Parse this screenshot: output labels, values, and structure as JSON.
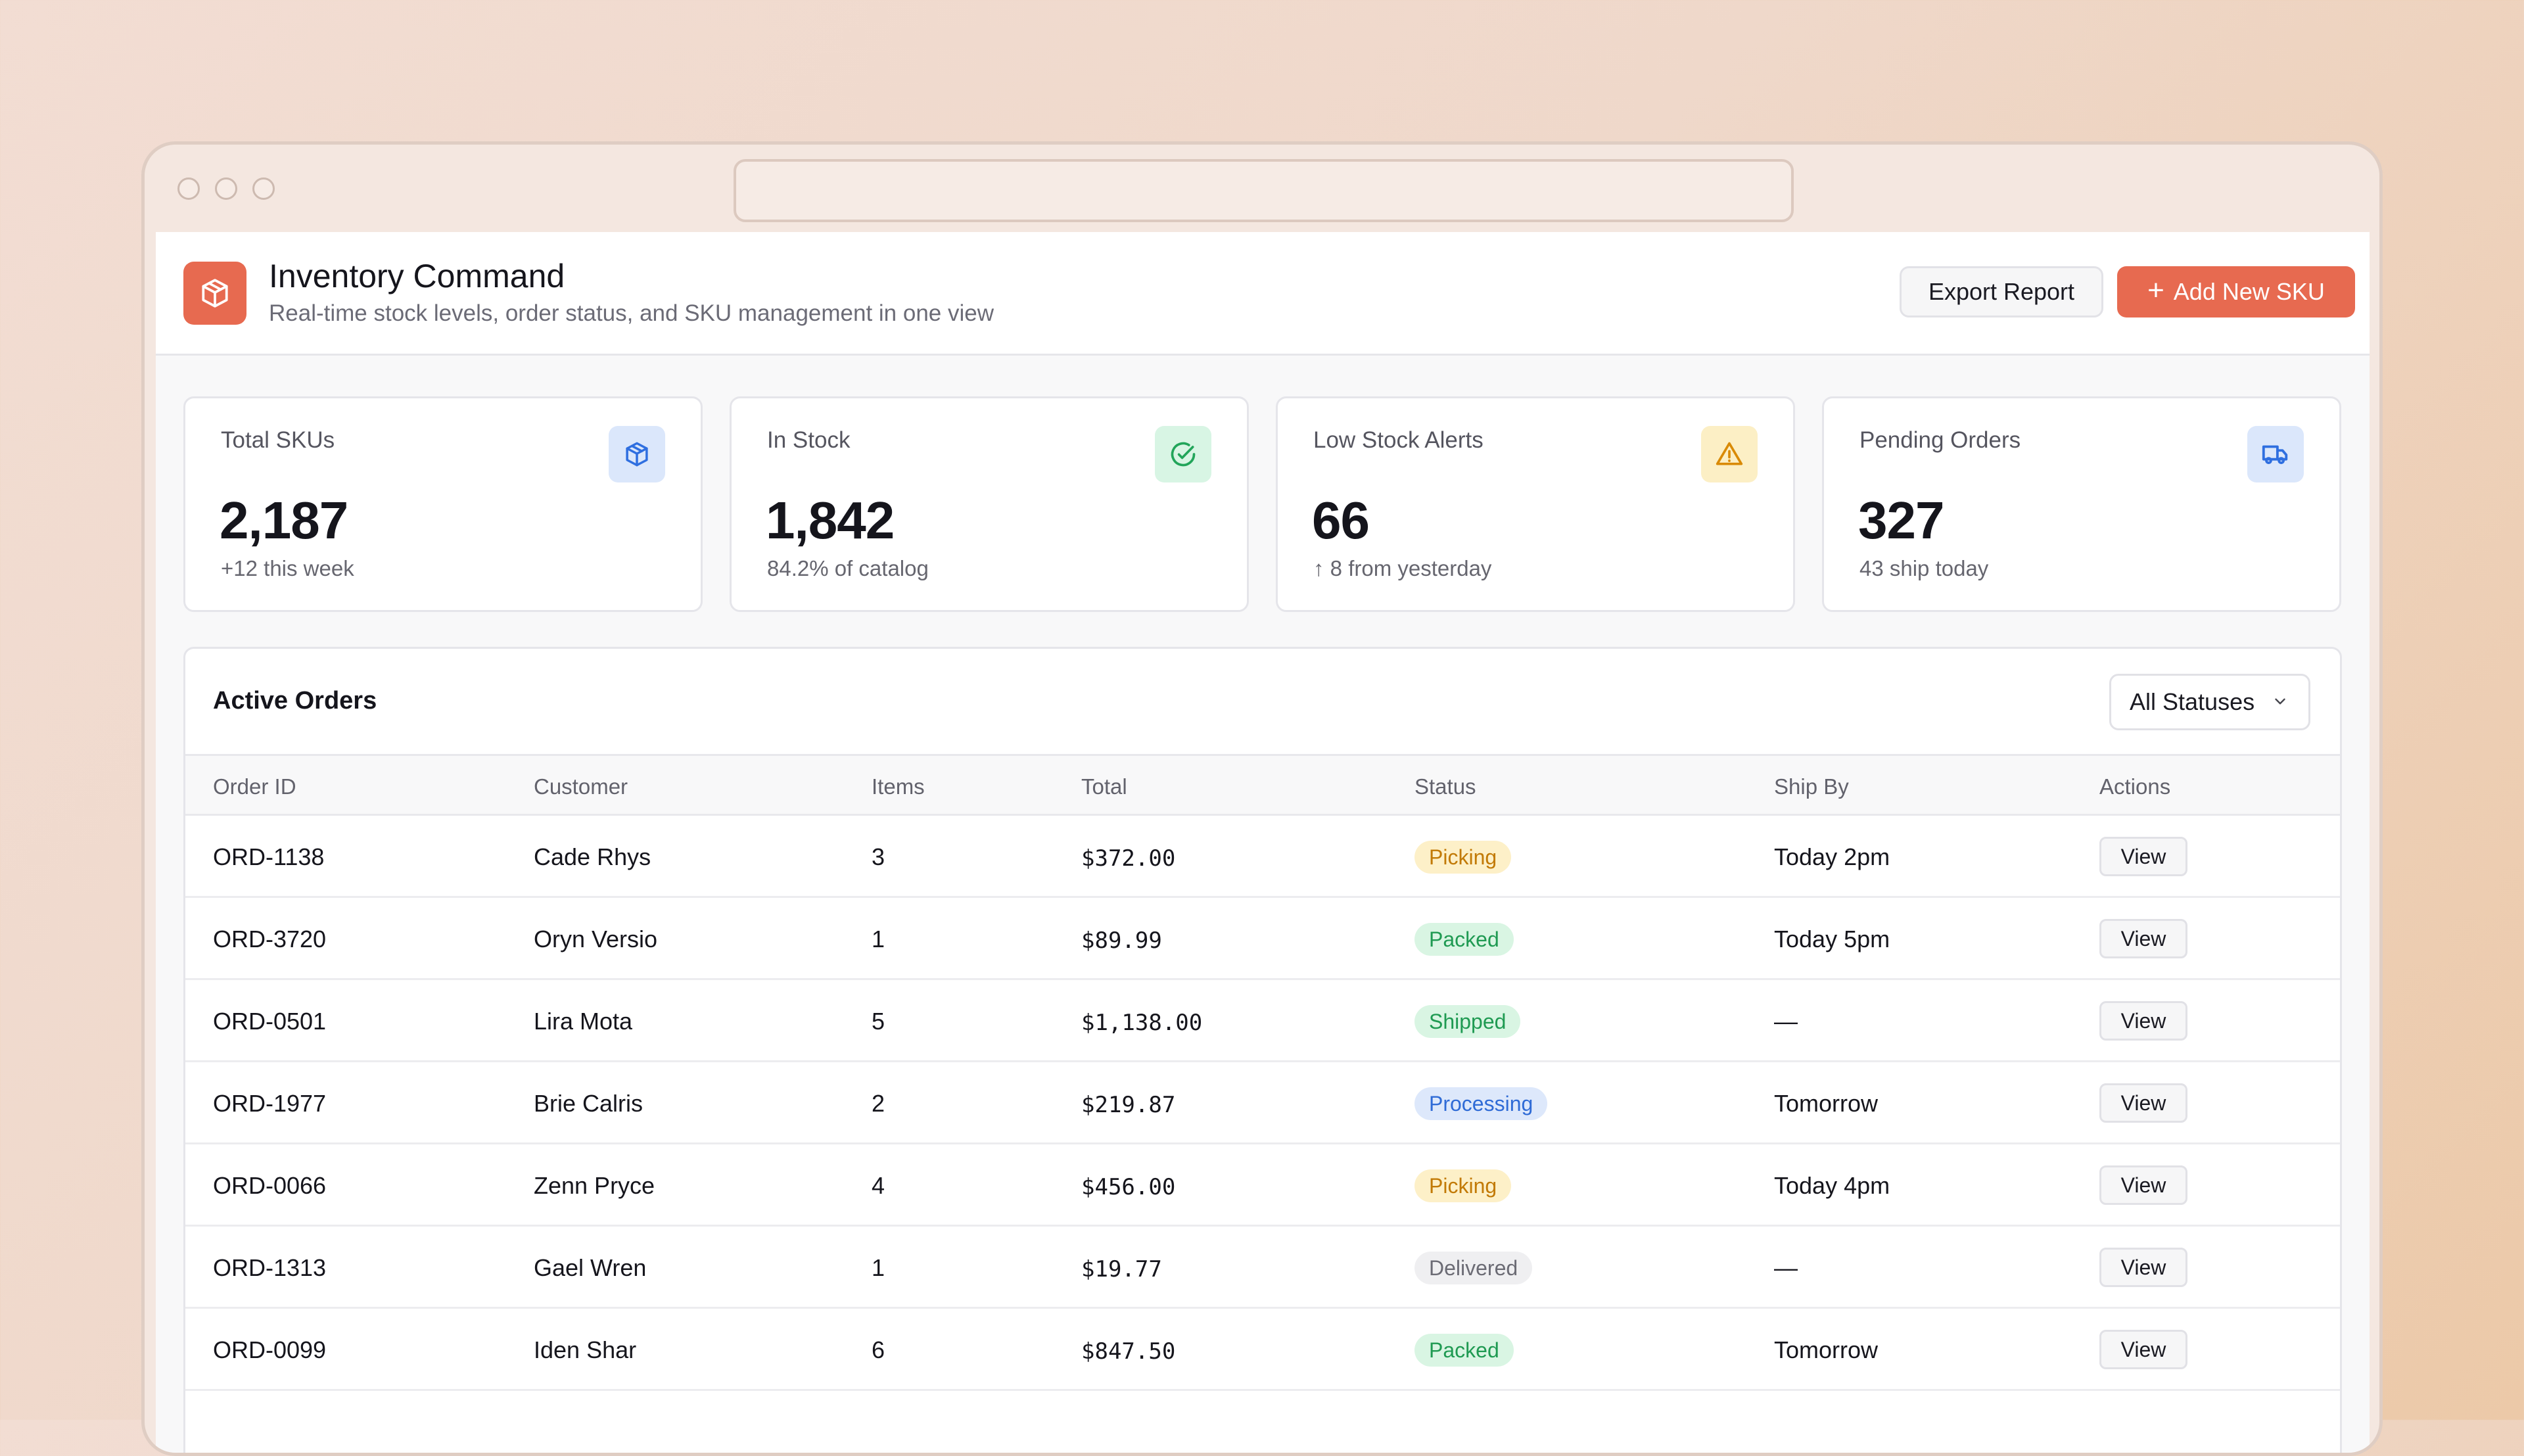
{
  "header": {
    "title": "Inventory Command",
    "subtitle": "Real-time stock levels, order status, and SKU management in one view",
    "logo_icon": "package-icon",
    "export_label": "Export Report",
    "add_label": "Add New SKU",
    "accent_color": "#e76a50"
  },
  "stats": [
    {
      "label": "Total SKUs",
      "value": "2,187",
      "sub": "+12 this week",
      "icon": "package-icon",
      "icon_bg": "#dbe7fb",
      "icon_color": "#2f6fe0"
    },
    {
      "label": "In Stock",
      "value": "1,842",
      "sub": "84.2% of catalog",
      "icon": "check-circle-icon",
      "icon_bg": "#d8f5e4",
      "icon_color": "#22a55a"
    },
    {
      "label": "Low Stock Alerts",
      "value": "66",
      "sub": "↑ 8 from yesterday",
      "icon": "warning-icon",
      "icon_bg": "#fcefc5",
      "icon_color": "#d98a06"
    },
    {
      "label": "Pending Orders",
      "value": "327",
      "sub": "43 ship today",
      "icon": "truck-icon",
      "icon_bg": "#dbe7fb",
      "icon_color": "#2f6fe0"
    }
  ],
  "orders": {
    "title": "Active Orders",
    "filter_label": "All Statuses",
    "columns": [
      "Order ID",
      "Customer",
      "Items",
      "Total",
      "Status",
      "Ship By",
      "Actions"
    ],
    "action_label": "View",
    "rows": [
      {
        "id": "ORD-1138",
        "customer": "Cade Rhys",
        "items": "3",
        "total": "$372.00",
        "status": "Picking",
        "ship": "Today 2pm"
      },
      {
        "id": "ORD-3720",
        "customer": "Oryn Versio",
        "items": "1",
        "total": "$89.99",
        "status": "Packed",
        "ship": "Today 5pm"
      },
      {
        "id": "ORD-0501",
        "customer": "Lira Mota",
        "items": "5",
        "total": "$1,138.00",
        "status": "Shipped",
        "ship": "—"
      },
      {
        "id": "ORD-1977",
        "customer": "Brie Calris",
        "items": "2",
        "total": "$219.87",
        "status": "Processing",
        "ship": "Tomorrow"
      },
      {
        "id": "ORD-0066",
        "customer": "Zenn Pryce",
        "items": "4",
        "total": "$456.00",
        "status": "Picking",
        "ship": "Today 4pm"
      },
      {
        "id": "ORD-1313",
        "customer": "Gael Wren",
        "items": "1",
        "total": "$19.77",
        "status": "Delivered",
        "ship": "—"
      },
      {
        "id": "ORD-0099",
        "customer": "Iden Shar",
        "items": "6",
        "total": "$847.50",
        "status": "Packed",
        "ship": "Tomorrow"
      }
    ],
    "status_colors": {
      "Picking": {
        "bg": "#fdf0c8",
        "fg": "#c27a06"
      },
      "Packed": {
        "bg": "#d9f5e3",
        "fg": "#1f9a52"
      },
      "Shipped": {
        "bg": "#d9f5e3",
        "fg": "#1f9a52"
      },
      "Processing": {
        "bg": "#dde8fb",
        "fg": "#2f6bd6"
      },
      "Delivered": {
        "bg": "#efeff1",
        "fg": "#6b6b74"
      }
    }
  }
}
